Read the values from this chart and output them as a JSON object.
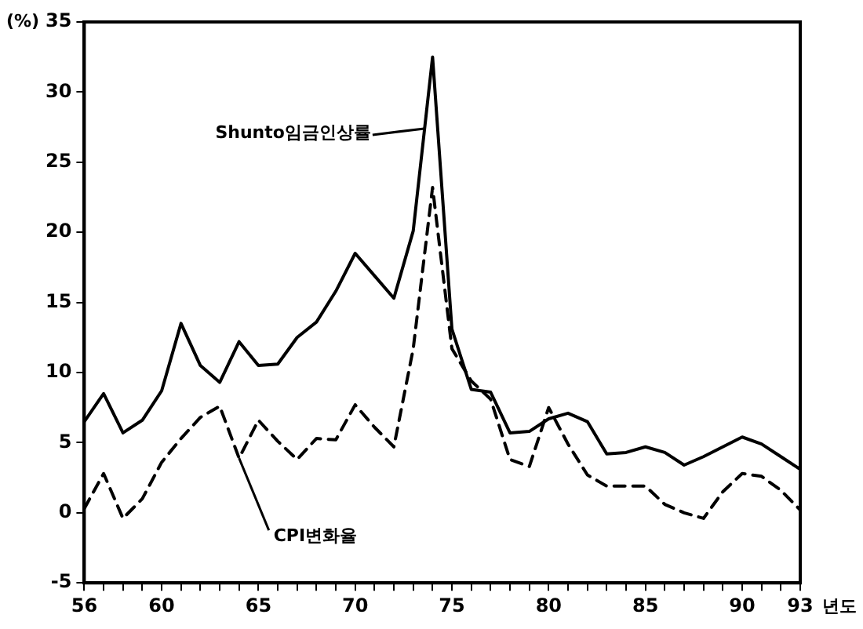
{
  "chart_data": {
    "type": "line",
    "ylabel": "(%)",
    "xlabel": "년도",
    "x": [
      56,
      57,
      58,
      59,
      60,
      61,
      62,
      63,
      64,
      65,
      66,
      67,
      68,
      69,
      70,
      71,
      72,
      73,
      74,
      75,
      76,
      77,
      78,
      79,
      80,
      81,
      82,
      83,
      84,
      85,
      86,
      87,
      88,
      89,
      90,
      91,
      92,
      93
    ],
    "series": [
      {
        "color": "#000000",
        "line_style": "solid",
        "values": [
          6.5,
          8.5,
          5.7,
          6.6,
          8.7,
          13.5,
          10.5,
          9.3,
          12.2,
          10.5,
          10.6,
          12.5,
          13.6,
          15.8,
          18.5,
          16.9,
          15.3,
          20.1,
          32.5,
          13.1,
          8.8,
          8.6,
          5.7,
          5.8,
          6.7,
          7.1,
          6.5,
          4.2,
          4.3,
          4.7,
          4.3,
          3.4,
          4.0,
          4.7,
          5.4,
          4.9,
          4.0,
          3.1
        ]
      },
      {
        "color": "#000000",
        "line_style": "dashed",
        "values": [
          0.3,
          2.8,
          -0.4,
          1.0,
          3.6,
          5.3,
          6.8,
          7.6,
          3.9,
          6.6,
          5.1,
          3.8,
          5.3,
          5.2,
          7.7,
          6.1,
          4.7,
          11.7,
          23.2,
          11.7,
          9.4,
          8.1,
          3.8,
          3.3,
          7.5,
          4.9,
          2.7,
          1.9,
          1.9,
          1.9,
          0.6,
          0.0,
          -0.4,
          1.5,
          2.8,
          2.6,
          1.6,
          0.2
        ]
      }
    ],
    "xlim": [
      56,
      93
    ],
    "ylim": [
      -5,
      35
    ],
    "xticks": [
      56,
      {
        "value": 57,
        "label": null
      },
      {
        "value": 58,
        "label": null
      },
      {
        "value": 59,
        "label": null
      },
      60,
      {
        "value": 61,
        "label": null
      },
      {
        "value": 62,
        "label": null
      },
      {
        "value": 63,
        "label": null
      },
      {
        "value": 64,
        "label": null
      },
      65,
      {
        "value": 66,
        "label": null
      },
      {
        "value": 67,
        "label": null
      },
      {
        "value": 68,
        "label": null
      },
      {
        "value": 69,
        "label": null
      },
      70,
      {
        "value": 71,
        "label": null
      },
      {
        "value": 72,
        "label": null
      },
      {
        "value": 73,
        "label": null
      },
      {
        "value": 74,
        "label": null
      },
      75,
      {
        "value": 76,
        "label": null
      },
      {
        "value": 77,
        "label": null
      },
      {
        "value": 78,
        "label": null
      },
      {
        "value": 79,
        "label": null
      },
      80,
      {
        "value": 81,
        "label": null
      },
      {
        "value": 82,
        "label": null
      },
      {
        "value": 83,
        "label": null
      },
      {
        "value": 84,
        "label": null
      },
      85,
      {
        "value": 86,
        "label": null
      },
      {
        "value": 87,
        "label": null
      },
      {
        "value": 88,
        "label": null
      },
      {
        "value": 89,
        "label": null
      },
      90,
      {
        "value": 91,
        "label": null
      },
      {
        "value": 92,
        "label": null
      },
      93
    ],
    "yticks": [
      -5,
      0,
      5,
      10,
      15,
      20,
      25,
      30,
      35
    ],
    "annotations": [
      "Shunto임금인상률",
      {
        "text": "CPI변화율",
        "x": 64,
        "y": 3.9
      }
    ],
    "grid": false,
    "legend": false,
    "marker": "none"
  }
}
